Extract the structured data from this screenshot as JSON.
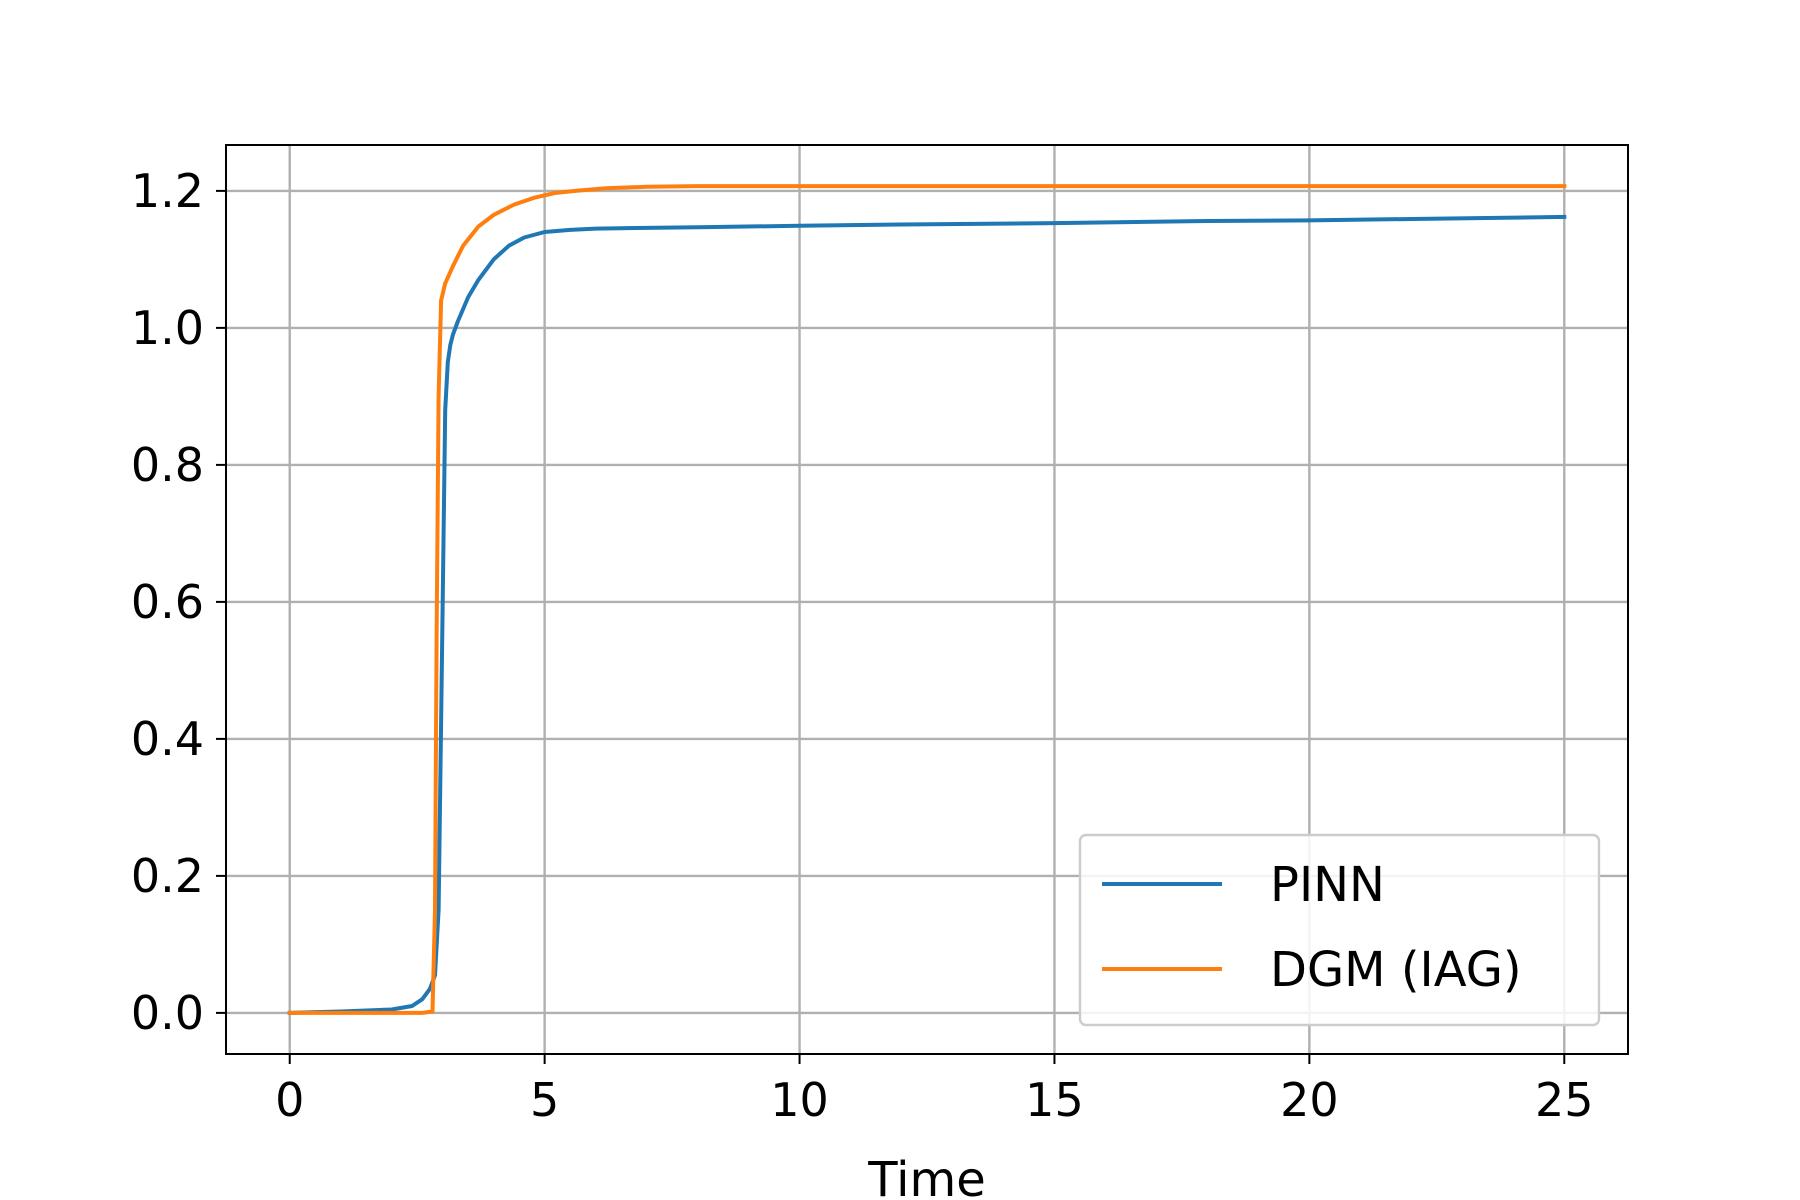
{
  "chart_data": {
    "type": "line",
    "title": "",
    "xlabel": "Time",
    "ylabel": "",
    "xlim": [
      -1.25,
      26.25
    ],
    "ylim": [
      -0.06,
      1.267
    ],
    "xticks": [
      0,
      5,
      10,
      15,
      20,
      25
    ],
    "xtick_labels": [
      "0",
      "5",
      "10",
      "15",
      "20",
      "25"
    ],
    "yticks": [
      0.0,
      0.2,
      0.4,
      0.6,
      0.8,
      1.0,
      1.2
    ],
    "ytick_labels": [
      "0.0",
      "0.2",
      "0.4",
      "0.6",
      "0.8",
      "1.0",
      "1.2"
    ],
    "grid": true,
    "legend_position": "lower-right",
    "series": [
      {
        "name": "PINN",
        "color": "#1f77b4",
        "x": [
          0,
          1,
          2,
          2.4,
          2.6,
          2.75,
          2.85,
          2.92,
          3.0,
          3.05,
          3.1,
          3.15,
          3.2,
          3.3,
          3.5,
          3.7,
          4.0,
          4.3,
          4.6,
          5.0,
          5.5,
          6,
          7,
          8,
          10,
          12,
          15,
          18,
          20,
          22,
          25
        ],
        "y": [
          0.0,
          0.002,
          0.005,
          0.01,
          0.02,
          0.035,
          0.055,
          0.15,
          0.6,
          0.88,
          0.95,
          0.975,
          0.99,
          1.01,
          1.045,
          1.07,
          1.1,
          1.12,
          1.132,
          1.14,
          1.143,
          1.145,
          1.146,
          1.147,
          1.149,
          1.151,
          1.153,
          1.156,
          1.157,
          1.159,
          1.162
        ]
      },
      {
        "name": "DGM (IAG)",
        "color": "#ff7f0e",
        "x": [
          0,
          1,
          2,
          2.6,
          2.8,
          2.85,
          2.88,
          2.92,
          2.97,
          3.05,
          3.2,
          3.4,
          3.7,
          4.0,
          4.4,
          4.8,
          5.2,
          5.6,
          6.2,
          7,
          8,
          10,
          15,
          20,
          25
        ],
        "y": [
          0.0,
          0.0,
          0.0,
          0.0,
          0.002,
          0.15,
          0.55,
          0.9,
          1.04,
          1.065,
          1.09,
          1.12,
          1.148,
          1.165,
          1.18,
          1.19,
          1.197,
          1.2,
          1.204,
          1.206,
          1.207,
          1.207,
          1.207,
          1.207,
          1.207
        ]
      }
    ]
  }
}
